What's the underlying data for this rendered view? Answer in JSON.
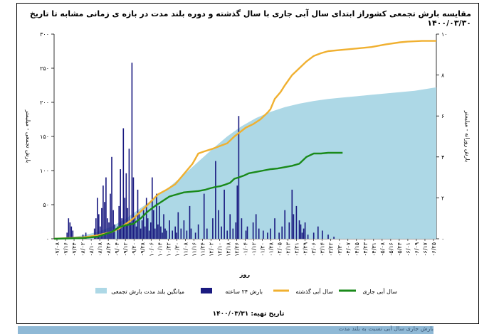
{
  "chart_data": {
    "type": "line",
    "title": "مقایسه بارش تجمعی کشوراز ابتدای سال آبی جاری با سال گذشته و دوره بلند مدت در بازه ی زمانی مشابه تا تاریخ ۱۴۰۰/۰۳/۳۰",
    "xlabel": "روز",
    "ylabel_left": "بارش تجمعی - میلیمتر",
    "ylabel_right": "بارش روزانه - میلیمتر",
    "ylim_left": [
      0,
      300
    ],
    "ylim_right": [
      0,
      10
    ],
    "yticks_left": [
      "۰",
      "۵۰",
      "۱۰۰",
      "۱۵۰",
      "۲۰۰",
      "۲۵۰",
      "۳۰۰"
    ],
    "yticks_right": [
      "۰",
      "۲",
      "۴",
      "۶",
      "۸",
      "۱۰"
    ],
    "x_index_range": [
      0,
      265
    ],
    "date_label": "تاریخ تهیه: ۱۴۰۰/۰۳/۳۱",
    "legend_position": "bottom",
    "x_tick_labels": [
      "۰۷/۰۸",
      "۰۷/۱۶",
      "۰۷/۲۴",
      "۰۸/۰۲",
      "۰۸/۱۰",
      "۰۸/۱۸",
      "۰۸/۲۶",
      "۰۹/۰۴",
      "۰۹/۱۲",
      "۰۹/۲۰",
      "۰۹/۲۸",
      "۱۰/۰۶",
      "۱۰/۱۴",
      "۱۰/۲۲",
      "۱۰/۳۰",
      "۱۱/۰۸",
      "۱۱/۱۶",
      "۱۱/۲۴",
      "۱۲/۰۲",
      "۱۲/۱۰",
      "۱۲/۱۸",
      "۱۲/۲۶",
      "۰۱/۰۴",
      "۰۱/۱۲",
      "۰۱/۲۰",
      "۰۱/۲۸",
      "۰۲/۰۵",
      "۰۲/۱۳",
      "۰۲/۲۱",
      "۰۲/۲۹",
      "۰۳/۰۶",
      "۰۳/۱۴",
      "۰۳/۲۲",
      "۰۳/۳۰",
      "۰۴/۰۷",
      "۰۴/۱۵",
      "۰۴/۲۳",
      "۰۴/۳۱",
      "۰۵/۰۸",
      "۰۵/۱۶",
      "۰۵/۲۴",
      "۰۶/۰۱",
      "۰۶/۰۹",
      "۰۶/۱۷",
      "۰۶/۲۵"
    ],
    "series": [
      {
        "name": "میانگین بلند مدت بارش تجمعی",
        "kind": "area",
        "axis": "left",
        "color": "#add8e6",
        "x": [
          0,
          10,
          20,
          30,
          40,
          50,
          60,
          70,
          80,
          90,
          100,
          110,
          120,
          130,
          140,
          150,
          160,
          170,
          180,
          190,
          200,
          210,
          220,
          230,
          240,
          250,
          265
        ],
        "values": [
          0,
          2,
          5,
          10,
          18,
          30,
          45,
          60,
          76,
          94,
          113,
          132,
          150,
          165,
          177,
          186,
          193,
          198,
          202,
          205,
          207,
          209,
          211,
          213,
          215,
          217,
          222
        ]
      },
      {
        "name": "سال آبی گذشته",
        "kind": "line",
        "axis": "left",
        "color": "#f0b030",
        "x": [
          0,
          20,
          30,
          40,
          45,
          52,
          55,
          60,
          65,
          72,
          78,
          84,
          90,
          96,
          100,
          104,
          110,
          120,
          125,
          133,
          138,
          143,
          148,
          150,
          153,
          157,
          160,
          165,
          170,
          175,
          180,
          185,
          190,
          200,
          210,
          220,
          230,
          240,
          245,
          255,
          265
        ],
        "values": [
          0,
          2,
          5,
          10,
          15,
          25,
          30,
          40,
          50,
          65,
          72,
          80,
          95,
          110,
          125,
          128,
          132,
          140,
          150,
          163,
          168,
          175,
          185,
          190,
          205,
          215,
          225,
          240,
          250,
          260,
          268,
          272,
          275,
          277,
          279,
          281,
          285,
          288,
          289,
          290,
          290
        ]
      },
      {
        "name": "سال آبی جاری",
        "kind": "line",
        "axis": "left",
        "color": "#1a8a1a",
        "x": [
          0,
          20,
          30,
          40,
          45,
          50,
          55,
          60,
          65,
          70,
          80,
          90,
          100,
          105,
          108,
          112,
          115,
          118,
          122,
          125,
          128,
          132,
          135,
          140,
          145,
          150,
          155,
          160,
          165,
          170,
          175,
          180,
          185,
          190,
          195,
          200
        ],
        "values": [
          0,
          1,
          3,
          10,
          17,
          20,
          22,
          30,
          40,
          48,
          62,
          68,
          70,
          72,
          74,
          76,
          77,
          79,
          82,
          88,
          90,
          93,
          96,
          98,
          100,
          102,
          103,
          105,
          107,
          110,
          120,
          125,
          125,
          126,
          126,
          126
        ]
      },
      {
        "name": "بارش ۲۴ ساعته",
        "kind": "bar",
        "axis": "right",
        "color": "#1a1a80",
        "x": [
          9,
          10,
          11,
          12,
          13,
          20,
          22,
          28,
          29,
          30,
          31,
          32,
          33,
          34,
          35,
          36,
          37,
          38,
          39,
          40,
          41,
          42,
          44,
          45,
          46,
          47,
          48,
          49,
          50,
          51,
          52,
          53,
          54,
          55,
          56,
          57,
          58,
          59,
          60,
          61,
          62,
          63,
          64,
          65,
          66,
          67,
          68,
          69,
          70,
          71,
          72,
          73,
          74,
          75,
          76,
          77,
          78,
          80,
          82,
          84,
          85,
          86,
          88,
          90,
          92,
          94,
          95,
          98,
          100,
          104,
          106,
          110,
          112,
          114,
          116,
          118,
          120,
          122,
          124,
          126,
          127,
          128,
          130,
          133,
          134,
          138,
          140,
          142,
          145,
          148,
          150,
          153,
          156,
          158,
          160,
          163,
          165,
          166,
          168,
          170,
          171,
          172,
          173,
          174,
          176,
          180,
          183,
          186,
          190,
          194
        ],
        "values": [
          0.3,
          1.0,
          0.8,
          0.6,
          0.4,
          0.2,
          0.3,
          0.5,
          1.0,
          2.0,
          1.2,
          0.6,
          1.5,
          2.6,
          1.8,
          3.0,
          1.0,
          0.8,
          2.2,
          4.0,
          1.4,
          0.7,
          0.6,
          1.6,
          3.4,
          1.0,
          5.4,
          2.0,
          3.2,
          1.5,
          4.4,
          0.8,
          8.6,
          3.0,
          1.1,
          0.6,
          2.4,
          1.2,
          0.5,
          0.9,
          1.4,
          0.6,
          2.0,
          1.0,
          0.4,
          0.8,
          3.0,
          1.4,
          0.5,
          2.2,
          0.7,
          1.6,
          0.6,
          0.3,
          1.2,
          0.5,
          0.4,
          0.9,
          0.4,
          0.6,
          0.3,
          1.3,
          0.5,
          0.9,
          0.4,
          1.6,
          0.5,
          0.3,
          0.7,
          2.2,
          0.5,
          1.0,
          3.8,
          1.4,
          0.6,
          2.4,
          0.4,
          1.2,
          0.5,
          0.8,
          2.6,
          6.0,
          1.0,
          0.4,
          0.6,
          0.8,
          1.2,
          0.5,
          0.4,
          0.3,
          0.5,
          1.0,
          0.3,
          0.6,
          1.4,
          0.8,
          2.4,
          1.2,
          1.6,
          0.9,
          0.7,
          0.3,
          0.5,
          0.8,
          0.2,
          0.3,
          0.6,
          0.4,
          0.2,
          0.1
        ]
      }
    ]
  },
  "bottom_strip_text": "بارش جاری سال آبی نسبت به بلند مدت"
}
